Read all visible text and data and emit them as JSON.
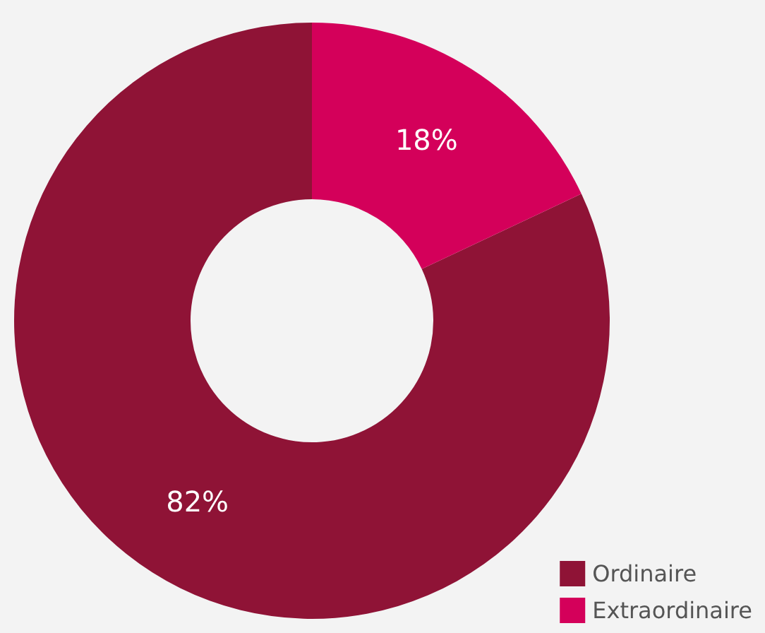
{
  "chart_data": {
    "type": "donut",
    "categories": [
      "Ordinaire",
      "Extraordinaire"
    ],
    "values": [
      82,
      18
    ],
    "colors": [
      "#8f1336",
      "#d4005a"
    ],
    "value_labels": [
      "82%",
      "18%"
    ],
    "legend": "bottom right"
  }
}
